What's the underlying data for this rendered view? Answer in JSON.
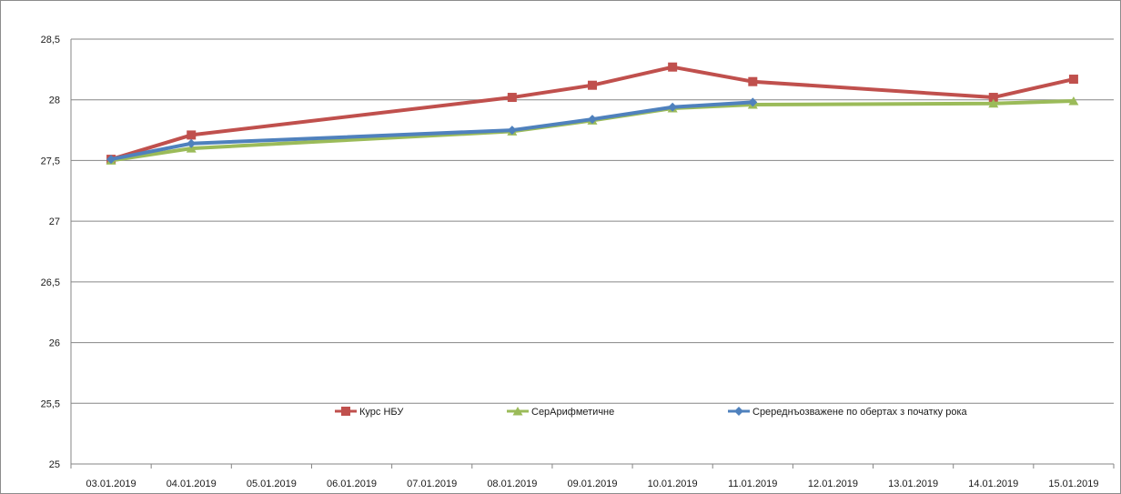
{
  "chart_data": {
    "type": "line",
    "categories": [
      "03.01.2019",
      "04.01.2019",
      "05.01.2019",
      "06.01.2019",
      "07.01.2019",
      "08.01.2019",
      "09.01.2019",
      "10.01.2019",
      "11.01.2019",
      "12.01.2019",
      "13.01.2019",
      "14.01.2019",
      "15.01.2019"
    ],
    "ylim": [
      25,
      28.5
    ],
    "yticks": [
      25,
      25.5,
      26,
      26.5,
      27,
      27.5,
      28,
      28.5
    ],
    "ytick_labels": [
      "25",
      "25,5",
      "26",
      "26,5",
      "27",
      "27,5",
      "28",
      "28,5"
    ],
    "grid": "horizontal",
    "legend_position": "bottom-center",
    "series": [
      {
        "name": "Курс НБУ",
        "color": "#c0504d",
        "marker": "square",
        "values": [
          27.51,
          27.71,
          null,
          null,
          null,
          28.02,
          28.12,
          28.27,
          28.15,
          null,
          null,
          28.02,
          28.17
        ]
      },
      {
        "name": "СерАрифметичне",
        "color": "#9bbb59",
        "marker": "triangle",
        "values": [
          27.5,
          27.6,
          null,
          null,
          null,
          27.74,
          27.83,
          27.93,
          27.96,
          null,
          null,
          27.97,
          27.99
        ]
      },
      {
        "name": "Сpереднъозважене по обертах з початку рока",
        "color": "#4f81bd",
        "marker": "diamond",
        "values": [
          27.51,
          27.64,
          null,
          null,
          null,
          27.75,
          27.84,
          27.94,
          27.98,
          null,
          null,
          null,
          null
        ]
      }
    ]
  }
}
